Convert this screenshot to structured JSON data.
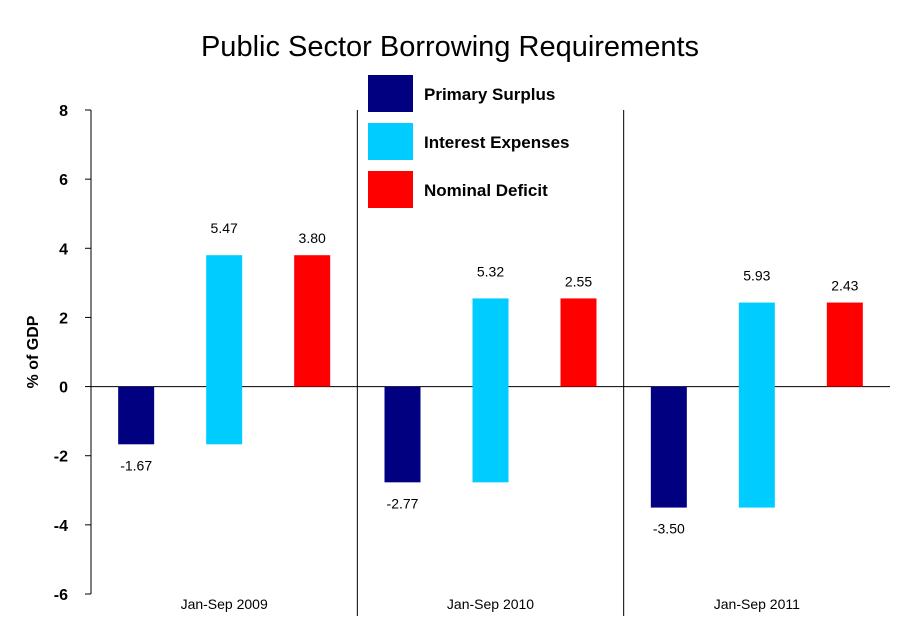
{
  "chart_data": {
    "type": "bar",
    "title": "Public Sector Borrowing Requirements",
    "ylabel": "% of GDP",
    "xlabel": "",
    "ylim": [
      -6,
      8
    ],
    "yticks": [
      8,
      6,
      4,
      2,
      0,
      -2,
      -4,
      -6
    ],
    "categories": [
      "Jan-Sep 2009",
      "Jan-Sep 2010",
      "Jan-Sep 2011"
    ],
    "legend_position": "top-center",
    "series": [
      {
        "name": "Primary Surplus",
        "color": "#000080",
        "bar_ranges": [
          [
            -1.67,
            0
          ],
          [
            -2.77,
            0
          ],
          [
            -3.5,
            0
          ]
        ],
        "labels": [
          "-1.67",
          "-2.77",
          "-3.50"
        ]
      },
      {
        "name": "Interest Expenses",
        "color": "#00CCFF",
        "bar_ranges": [
          [
            -1.67,
            3.8
          ],
          [
            -2.77,
            2.55
          ],
          [
            -3.5,
            2.43
          ]
        ],
        "labels": [
          "5.47",
          "5.32",
          "5.93"
        ]
      },
      {
        "name": "Nominal Deficit",
        "color": "#FF0000",
        "bar_ranges": [
          [
            0,
            3.8
          ],
          [
            0,
            2.55
          ],
          [
            0,
            2.43
          ]
        ],
        "labels": [
          "3.80",
          "2.55",
          "2.43"
        ]
      }
    ]
  }
}
